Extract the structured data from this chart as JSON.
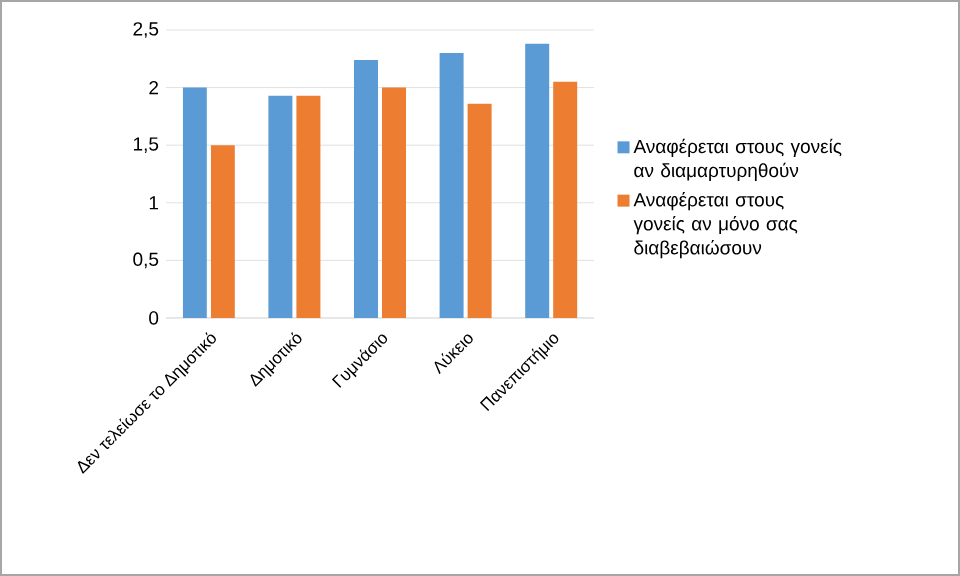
{
  "chart_data": {
    "type": "bar",
    "categories": [
      "Δεν τελείωσε το Δημοτικό",
      "Δημοτικό",
      "Γυμνάσιο",
      "Λύκειο",
      "Πανεπιστήμιο"
    ],
    "series": [
      {
        "name": "Αναφέρεται στους γονείς αν διαμαρτυρηθούν",
        "color": "#5b9bd5",
        "values": [
          2.0,
          1.93,
          2.24,
          2.3,
          2.38
        ]
      },
      {
        "name": "Αναφέρεται στους γονείς αν μόνο σας διαβεβαιώσουν",
        "color": "#ed7d31",
        "values": [
          1.5,
          1.93,
          2.0,
          1.86,
          2.05
        ]
      }
    ],
    "ylim": [
      0,
      2.5
    ],
    "yticks": [
      0,
      {
        "value": 0.5,
        "label": "0,5"
      },
      1,
      {
        "value": 1.5,
        "label": "1,5"
      },
      2,
      {
        "value": 2.5,
        "label": "2,5"
      }
    ],
    "grid": "y",
    "legend": "right"
  }
}
